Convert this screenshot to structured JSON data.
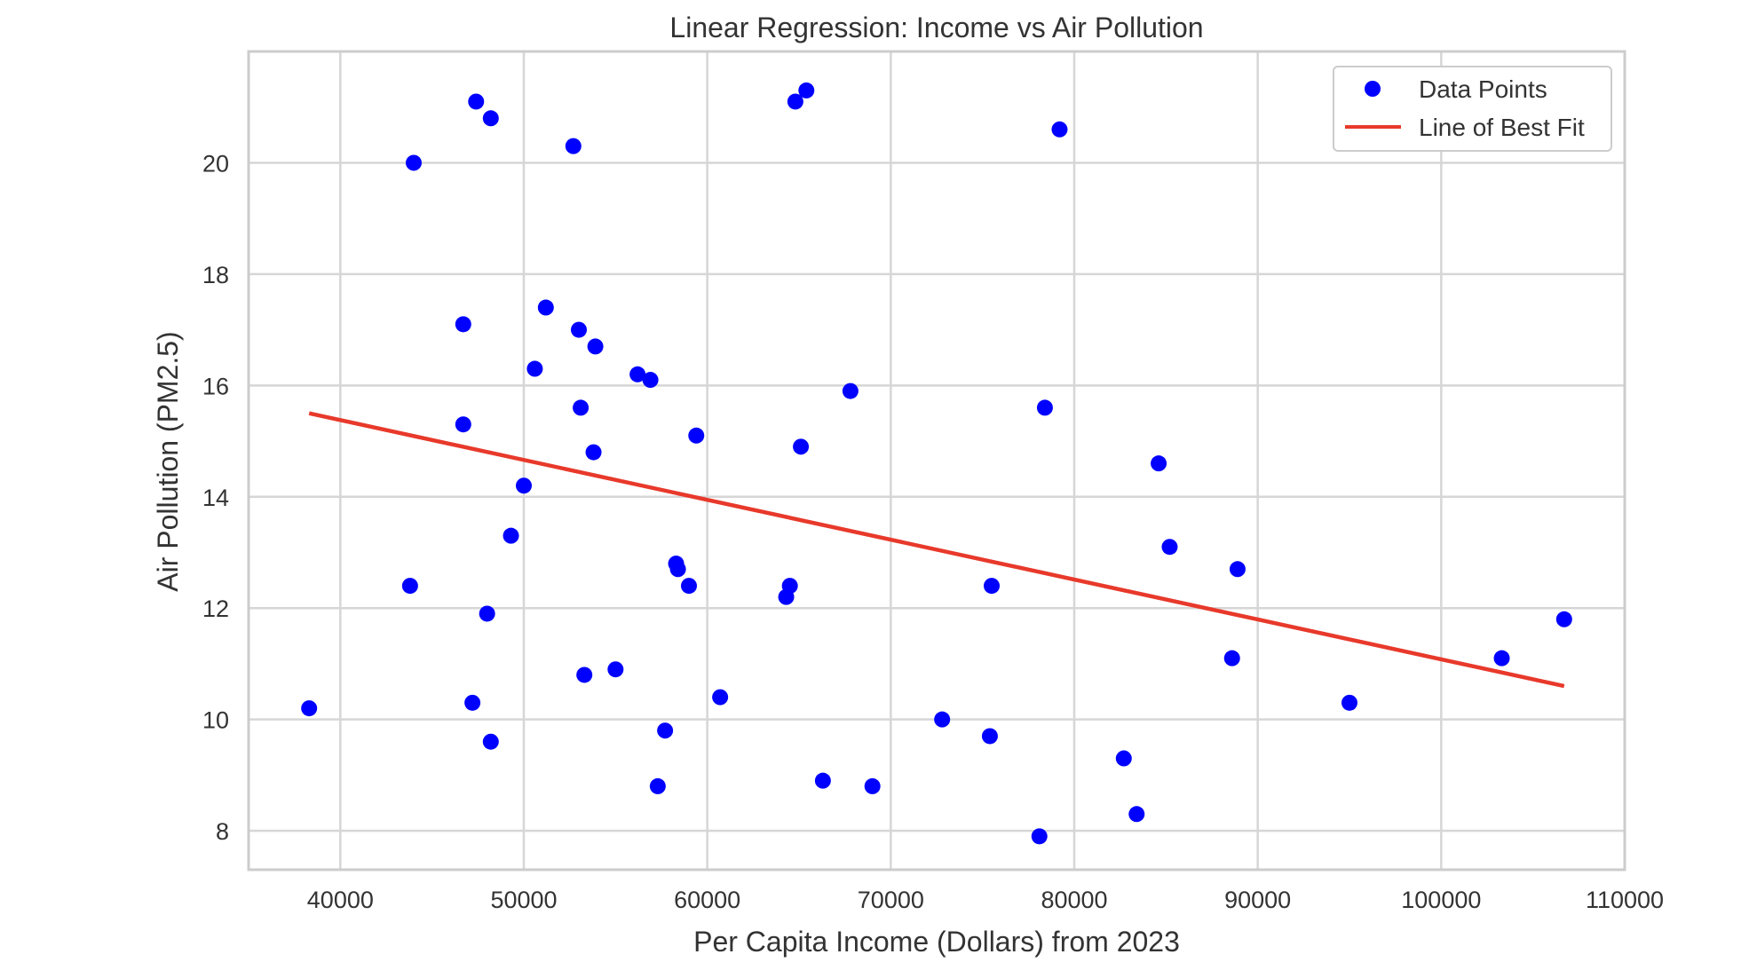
{
  "chart_data": {
    "type": "scatter",
    "title": "Linear Regression: Income vs Air Pollution",
    "xlabel": "Per Capita Income (Dollars) from 2023",
    "ylabel": "Air Pollution (PM2.5)",
    "xlim": [
      35000,
      110000
    ],
    "ylim": [
      7.3,
      22.0
    ],
    "xticks": [
      40000,
      50000,
      60000,
      70000,
      80000,
      90000,
      100000,
      110000
    ],
    "yticks": [
      8,
      10,
      12,
      14,
      16,
      18,
      20
    ],
    "grid": true,
    "legend_position": "top-right",
    "colors": {
      "points": "#0000ff",
      "line": "#e8392b"
    },
    "series": [
      {
        "name": "Data Points",
        "kind": "scatter",
        "points": [
          [
            38300,
            10.2
          ],
          [
            43800,
            12.4
          ],
          [
            44000,
            20.0
          ],
          [
            46700,
            17.1
          ],
          [
            46700,
            15.3
          ],
          [
            47200,
            10.3
          ],
          [
            47400,
            21.1
          ],
          [
            48000,
            11.9
          ],
          [
            48200,
            20.8
          ],
          [
            48200,
            9.6
          ],
          [
            49300,
            13.3
          ],
          [
            50000,
            14.2
          ],
          [
            50600,
            16.3
          ],
          [
            51200,
            17.4
          ],
          [
            52700,
            20.3
          ],
          [
            53000,
            17.0
          ],
          [
            53100,
            15.6
          ],
          [
            53300,
            10.8
          ],
          [
            53800,
            14.8
          ],
          [
            53900,
            16.7
          ],
          [
            55000,
            10.9
          ],
          [
            56200,
            16.2
          ],
          [
            56900,
            16.1
          ],
          [
            57300,
            8.8
          ],
          [
            57700,
            9.8
          ],
          [
            58300,
            12.8
          ],
          [
            58400,
            12.7
          ],
          [
            59000,
            12.4
          ],
          [
            59400,
            15.1
          ],
          [
            60700,
            10.4
          ],
          [
            64300,
            12.2
          ],
          [
            64500,
            12.4
          ],
          [
            64800,
            21.1
          ],
          [
            65100,
            14.9
          ],
          [
            65400,
            21.3
          ],
          [
            66300,
            8.9
          ],
          [
            67800,
            15.9
          ],
          [
            69000,
            8.8
          ],
          [
            72800,
            10.0
          ],
          [
            75400,
            9.7
          ],
          [
            75500,
            12.4
          ],
          [
            78100,
            7.9
          ],
          [
            78400,
            15.6
          ],
          [
            79200,
            20.6
          ],
          [
            82700,
            9.3
          ],
          [
            83400,
            8.3
          ],
          [
            84600,
            14.6
          ],
          [
            85200,
            13.1
          ],
          [
            88600,
            11.1
          ],
          [
            88900,
            12.7
          ],
          [
            95000,
            10.3
          ],
          [
            103300,
            11.1
          ],
          [
            106700,
            11.8
          ]
        ]
      },
      {
        "name": "Line of Best Fit",
        "kind": "line",
        "points": [
          [
            38300,
            15.5
          ],
          [
            106700,
            10.6
          ]
        ]
      }
    ]
  }
}
